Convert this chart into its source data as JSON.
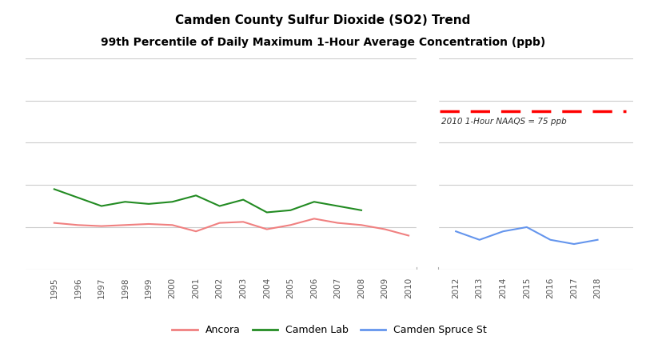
{
  "title_line1": "Camden County Sulfur Dioxide (SO2) Trend",
  "title_line2": "99th Percentile of Daily Maximum 1-Hour Average Concentration (ppb)",
  "background_color": "#ffffff",
  "naaqs_value": 75,
  "naaqs_label": "2010 1-Hour NAAQS = 75 ppb",
  "ancora_years": [
    1995,
    1996,
    1997,
    1998,
    1999,
    2000,
    2001,
    2002,
    2003,
    2004,
    2005,
    2006,
    2007,
    2008,
    2009,
    2010
  ],
  "ancora_values": [
    22,
    21,
    20.5,
    21,
    21.5,
    21,
    18,
    22,
    22.5,
    19,
    21,
    24,
    22,
    21,
    19,
    16
  ],
  "camden_lab_years": [
    1995,
    1996,
    1997,
    1998,
    1999,
    2000,
    2001,
    2002,
    2003,
    2004,
    2005,
    2006,
    2007,
    2008
  ],
  "camden_lab_values": [
    38,
    34,
    30,
    32,
    31,
    32,
    35,
    30,
    33,
    27,
    28,
    32,
    30,
    28
  ],
  "camden_spruce_years": [
    2012,
    2013,
    2014,
    2015,
    2016,
    2017,
    2018
  ],
  "camden_spruce_values": [
    18,
    14,
    18,
    20,
    14,
    12,
    14
  ],
  "ancora_color": "#f08080",
  "camden_lab_color": "#228B22",
  "camden_spruce_color": "#6495ED",
  "naaqs_color": "#ff0000",
  "ylim": [
    0,
    100
  ],
  "grid_values": [
    20,
    40,
    60,
    80,
    100
  ],
  "grid_color": "#cccccc",
  "legend_ancora": "Ancora",
  "legend_camden_lab": "Camden Lab",
  "legend_camden_spruce": "Camden Spruce St"
}
